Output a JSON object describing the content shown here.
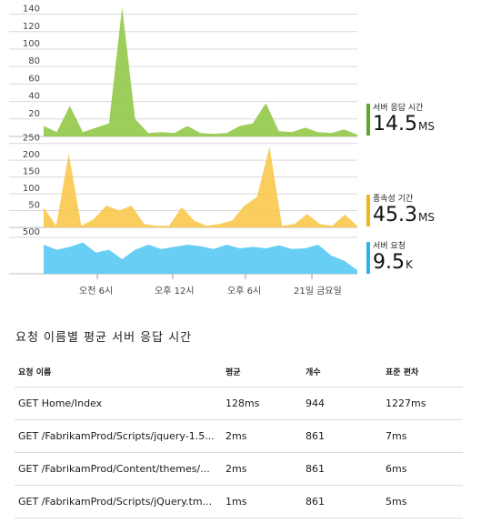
{
  "chart_data": [
    {
      "type": "area",
      "title": "",
      "ylim": [
        0,
        150
      ],
      "y_ticks": [
        "20",
        "40",
        "60",
        "80",
        "100",
        "120",
        "140"
      ],
      "color": "#8cc63f",
      "values": [
        12,
        5,
        35,
        5,
        10,
        15,
        148,
        20,
        4,
        5,
        4,
        12,
        4,
        3,
        4,
        12,
        15,
        38,
        6,
        5,
        10,
        5,
        4,
        8,
        2
      ]
    },
    {
      "type": "area",
      "ylim": [
        0,
        260
      ],
      "y_ticks": [
        "50",
        "100",
        "150",
        "200",
        "250"
      ],
      "color": "#f9c642",
      "values": [
        60,
        5,
        220,
        5,
        25,
        65,
        50,
        65,
        10,
        5,
        5,
        60,
        20,
        5,
        10,
        20,
        65,
        90,
        240,
        5,
        10,
        40,
        10,
        5,
        38,
        5
      ]
    },
    {
      "type": "area",
      "ylim": [
        0,
        550
      ],
      "y_ticks": [
        "500"
      ],
      "color": "#4dc6f2",
      "values": [
        400,
        330,
        370,
        430,
        290,
        330,
        200,
        330,
        400,
        340,
        370,
        400,
        380,
        340,
        400,
        350,
        370,
        350,
        390,
        340,
        350,
        400,
        250,
        180,
        50
      ]
    }
  ],
  "x_ticks": [
    "오전 6시",
    "오후 12시",
    "오후 6시",
    "21일 금요일"
  ],
  "metrics": [
    {
      "label": "서버 응답 시간",
      "value": "14.5",
      "unit": "MS",
      "color": "#5ea72f"
    },
    {
      "label": "종속성 기간",
      "value": "45.3",
      "unit": "MS",
      "color": "#f2b41b"
    },
    {
      "label": "서버 요청",
      "value": "9.5",
      "unit": "K",
      "color": "#2cb3e8"
    }
  ],
  "section_title": "요청 이름별 평균 서버 응답 시간",
  "table": {
    "headers": [
      "요청 이름",
      "평균",
      "개수",
      "표준 편차"
    ],
    "rows": [
      [
        "GET Home/Index",
        "128ms",
        "944",
        "1227ms"
      ],
      [
        "GET /FabrikamProd/Scripts/jquery-1.5...",
        "2ms",
        "861",
        "7ms"
      ],
      [
        "GET /FabrikamProd/Content/themes/...",
        "2ms",
        "861",
        "6ms"
      ],
      [
        "GET /FabrikamProd/Scripts/jQuery.tm...",
        "1ms",
        "861",
        "5ms"
      ]
    ]
  }
}
